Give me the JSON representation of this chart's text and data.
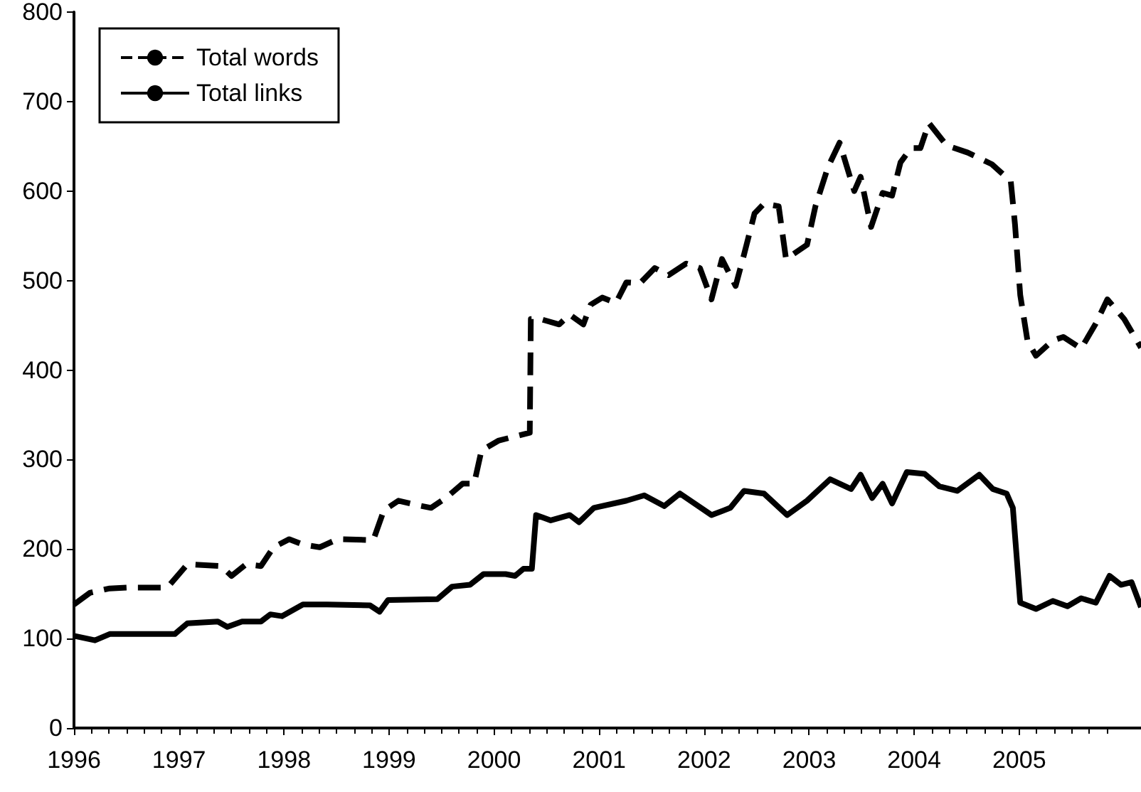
{
  "chart_data": {
    "type": "line",
    "xlim": [
      1996,
      2006.16
    ],
    "xticks": [
      1996,
      1997,
      1998,
      1999,
      2000,
      2001,
      2002,
      2003,
      2004,
      2005
    ],
    "ylim": [
      0,
      800
    ],
    "yticks": [
      0,
      100,
      200,
      300,
      400,
      500,
      600,
      700,
      800
    ],
    "grid": false,
    "legend": "top left",
    "marker": "none",
    "series": [
      {
        "name": "Total words",
        "color": "#000000",
        "line_style": "dashed",
        "x": [
          1996.0,
          1996.15,
          1996.34,
          1996.51,
          1996.89,
          1997.08,
          1997.4,
          1997.5,
          1997.64,
          1997.78,
          1997.9,
          1998.05,
          1998.18,
          1998.34,
          1998.51,
          1998.85,
          1998.95,
          1999.09,
          1999.27,
          1999.4,
          1999.54,
          1999.7,
          1999.81,
          1999.88,
          2000.04,
          2000.17,
          2000.34,
          2000.35,
          2000.44,
          2000.62,
          2000.72,
          2000.85,
          2000.92,
          2001.03,
          2001.16,
          2001.26,
          2001.39,
          2001.53,
          2001.66,
          2001.83,
          2001.96,
          2002.07,
          2002.17,
          2002.3,
          2002.38,
          2002.48,
          2002.57,
          2002.71,
          2002.78,
          2002.98,
          2003.06,
          2003.18,
          2003.29,
          2003.36,
          2003.43,
          2003.49,
          2003.59,
          2003.7,
          2003.79,
          2003.87,
          2003.97,
          2004.06,
          2004.14,
          2004.31,
          2004.51,
          2004.74,
          2004.92,
          2004.96,
          2005.01,
          2005.08,
          2005.16,
          2005.32,
          2005.42,
          2005.59,
          2005.73,
          2005.84,
          2006.0,
          2006.16
        ],
        "values": [
          138,
          151,
          156,
          157,
          157,
          183,
          181,
          170,
          183,
          181,
          202,
          211,
          205,
          202,
          211,
          210,
          243,
          254,
          249,
          246,
          257,
          273,
          273,
          310,
          321,
          325,
          330,
          457,
          457,
          451,
          462,
          451,
          473,
          481,
          475,
          498,
          497,
          514,
          506,
          519,
          514,
          479,
          524,
          494,
          529,
          575,
          586,
          583,
          524,
          540,
          583,
          627,
          654,
          627,
          600,
          616,
          560,
          598,
          595,
          632,
          648,
          648,
          676,
          651,
          643,
          630,
          611,
          563,
          484,
          432,
          416,
          433,
          437,
          424,
          452,
          479,
          457,
          425
        ]
      },
      {
        "name": "Total links",
        "color": "#000000",
        "line_style": "solid",
        "x": [
          1996.0,
          1996.2,
          1996.34,
          1996.96,
          1997.08,
          1997.37,
          1997.46,
          1997.6,
          1997.78,
          1997.87,
          1997.98,
          1998.18,
          1998.41,
          1998.82,
          1998.91,
          1998.99,
          1999.46,
          1999.6,
          1999.77,
          1999.9,
          2000.11,
          2000.2,
          2000.28,
          2000.36,
          2000.4,
          2000.54,
          2000.72,
          2000.81,
          2000.95,
          2001.26,
          2001.43,
          2001.62,
          2001.77,
          2002.07,
          2002.25,
          2002.38,
          2002.57,
          2002.79,
          2002.98,
          2003.2,
          2003.4,
          2003.49,
          2003.6,
          2003.7,
          2003.79,
          2003.93,
          2004.1,
          2004.24,
          2004.41,
          2004.62,
          2004.75,
          2004.88,
          2004.94,
          2005.01,
          2005.16,
          2005.32,
          2005.46,
          2005.59,
          2005.73,
          2005.86,
          2005.97,
          2006.07,
          2006.16
        ],
        "values": [
          103,
          98,
          105,
          105,
          117,
          119,
          113,
          119,
          119,
          127,
          125,
          138,
          138,
          137,
          130,
          143,
          144,
          158,
          160,
          172,
          172,
          170,
          178,
          178,
          238,
          232,
          238,
          230,
          246,
          254,
          260,
          248,
          262,
          238,
          246,
          265,
          262,
          238,
          254,
          278,
          267,
          283,
          257,
          273,
          251,
          286,
          284,
          270,
          265,
          283,
          267,
          262,
          246,
          140,
          133,
          142,
          136,
          145,
          140,
          170,
          160,
          163,
          135
        ]
      }
    ]
  }
}
